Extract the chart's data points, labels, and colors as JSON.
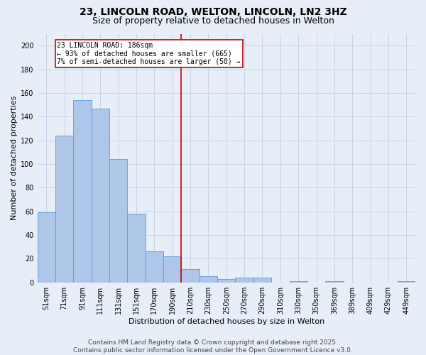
{
  "title": "23, LINCOLN ROAD, WELTON, LINCOLN, LN2 3HZ",
  "subtitle": "Size of property relative to detached houses in Welton",
  "xlabel": "Distribution of detached houses by size in Welton",
  "ylabel": "Number of detached properties",
  "categories": [
    "51sqm",
    "71sqm",
    "91sqm",
    "111sqm",
    "131sqm",
    "151sqm",
    "170sqm",
    "190sqm",
    "210sqm",
    "230sqm",
    "250sqm",
    "270sqm",
    "290sqm",
    "310sqm",
    "330sqm",
    "350sqm",
    "369sqm",
    "389sqm",
    "409sqm",
    "429sqm",
    "449sqm"
  ],
  "values": [
    59,
    124,
    154,
    147,
    104,
    58,
    26,
    22,
    11,
    5,
    3,
    4,
    4,
    0,
    1,
    0,
    1,
    0,
    0,
    0,
    1
  ],
  "bar_color": "#aec6e8",
  "bar_edge_color": "#5b9bd5",
  "grid_color": "#c8d4e8",
  "bg_color": "#e8eef8",
  "vline_x": 7.5,
  "vline_color": "#cc0000",
  "annotation_text": "23 LINCOLN ROAD: 186sqm\n← 93% of detached houses are smaller (665)\n7% of semi-detached houses are larger (50) →",
  "annotation_box_color": "#cc0000",
  "annotation_text_color": "#000000",
  "footer_text": "Contains HM Land Registry data © Crown copyright and database right 2025.\nContains public sector information licensed under the Open Government Licence v3.0.",
  "ylim": [
    0,
    210
  ],
  "yticks": [
    0,
    20,
    40,
    60,
    80,
    100,
    120,
    140,
    160,
    180,
    200
  ],
  "title_fontsize": 10,
  "subtitle_fontsize": 9,
  "axis_fontsize": 8,
  "tick_fontsize": 7,
  "footer_fontsize": 6.5,
  "ann_fontsize": 7
}
